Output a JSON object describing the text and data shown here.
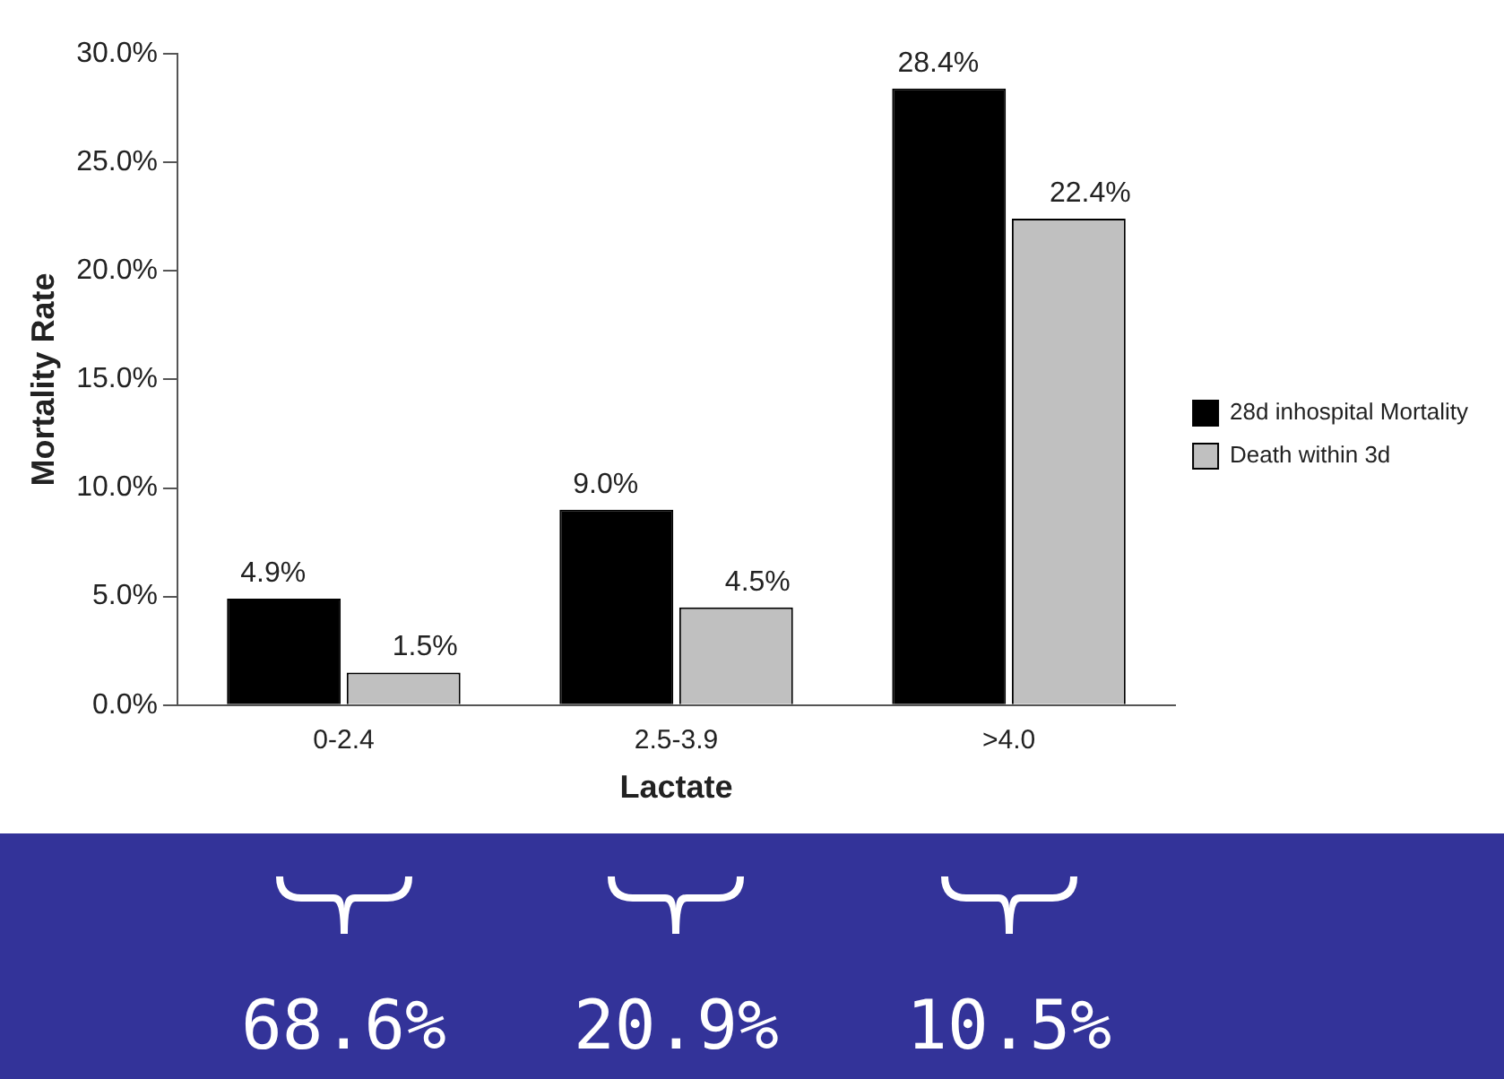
{
  "chart_data": {
    "type": "bar",
    "xlabel": "Lactate",
    "ylabel": "Mortality Rate",
    "categories": [
      "0-2.4",
      "2.5-3.9",
      ">4.0"
    ],
    "series": [
      {
        "name": "28d inhospital Mortality",
        "color": "#000000",
        "values": [
          4.9,
          9.0,
          28.4
        ],
        "value_labels": [
          "4.9%",
          "9.0%",
          "28.4%"
        ]
      },
      {
        "name": "Death within 3d",
        "color": "#c0c0c0",
        "values": [
          1.5,
          4.5,
          22.4
        ],
        "value_labels": [
          "1.5%",
          "4.5%",
          "22.4%"
        ]
      }
    ],
    "ylim": [
      0,
      30
    ],
    "yticks": [
      {
        "value": 0,
        "label": "0.0%"
      },
      {
        "value": 5,
        "label": "5.0%"
      },
      {
        "value": 10,
        "label": "10.0%"
      },
      {
        "value": 15,
        "label": "15.0%"
      },
      {
        "value": 20,
        "label": "20.0%"
      },
      {
        "value": 25,
        "label": "25.0%"
      },
      {
        "value": 30,
        "label": "30.0%"
      }
    ],
    "grid": false,
    "legend": "right",
    "annotations": [
      "68.6%",
      "20.9%",
      "10.5%"
    ]
  }
}
